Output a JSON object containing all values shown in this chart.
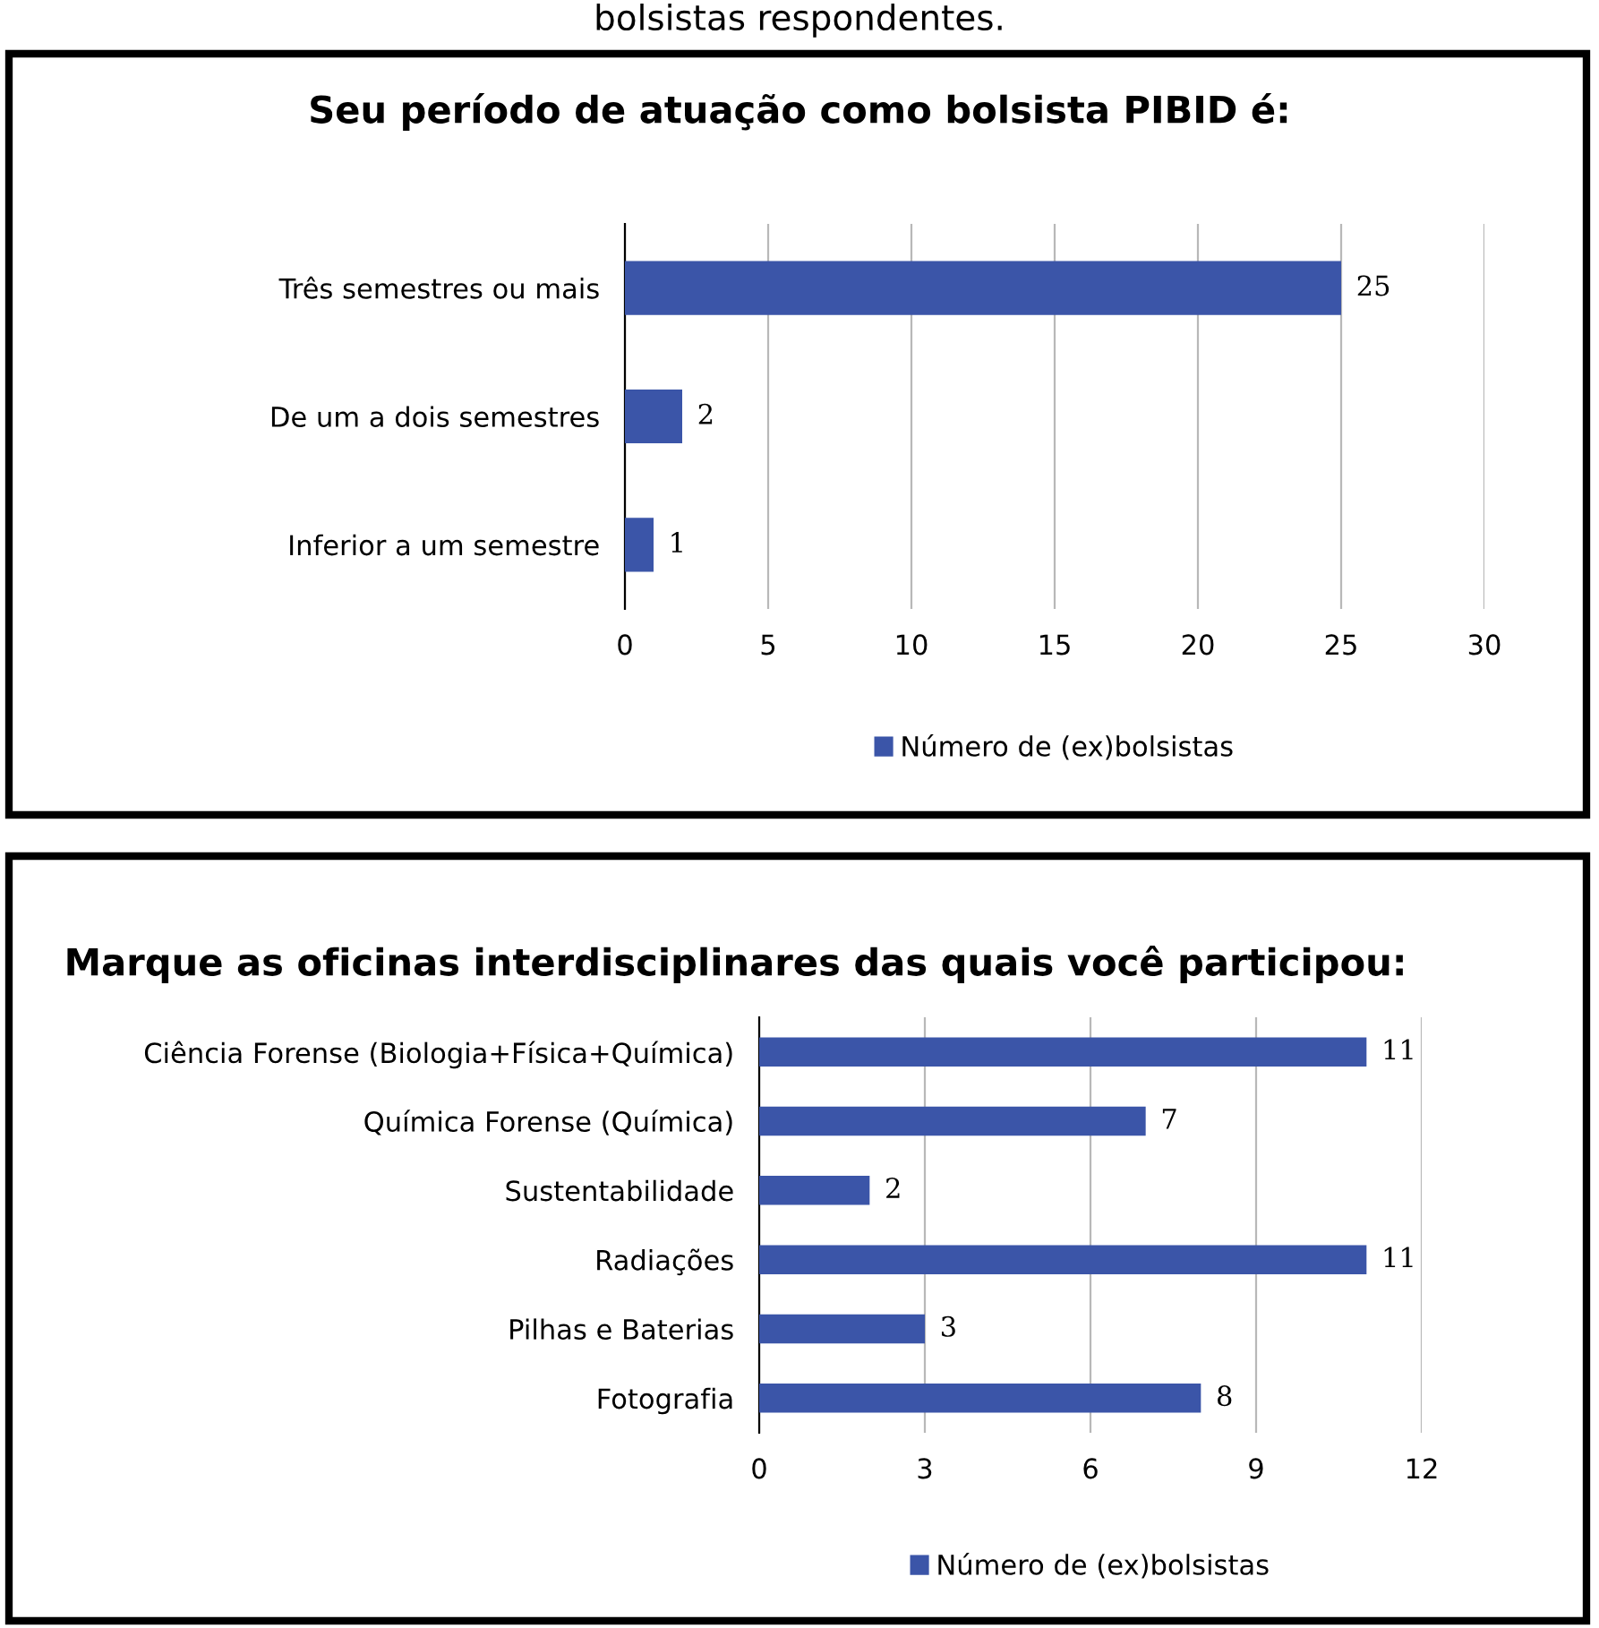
{
  "chart_data": [
    {
      "type": "bar",
      "orientation": "horizontal",
      "title": "Seu período de atuação como bolsista PIBID é:",
      "annotations": [
        "bolsistas respondentes."
      ],
      "categories": [
        "Três semestres ou mais",
        "De um a dois semestres",
        "Inferior a um semestre"
      ],
      "series": [
        {
          "name": "Número de (ex)bolsistas",
          "color": "#3b55a8",
          "values": [
            25,
            2,
            1
          ]
        }
      ],
      "xlim": [
        0,
        30
      ],
      "xticks": [
        0,
        5,
        10,
        15,
        20,
        25,
        30
      ],
      "grid": "x",
      "legend": "bottom",
      "data_labels": true
    },
    {
      "type": "bar",
      "orientation": "horizontal",
      "title": "Marque as oficinas interdisciplinares das quais você participou:",
      "categories": [
        "Ciência Forense (Biologia+Física+Química)",
        "Química Forense (Química)",
        "Sustentabilidade",
        "Radiações",
        "Pilhas e Baterias",
        "Fotografia"
      ],
      "series": [
        {
          "name": "Número de (ex)bolsistas",
          "color": "#3b55a8",
          "values": [
            11,
            7,
            2,
            11,
            3,
            8
          ]
        }
      ],
      "xlim": [
        0,
        12
      ],
      "xticks": [
        0,
        3,
        6,
        9,
        12
      ],
      "grid": "x",
      "legend": "bottom",
      "data_labels": true
    }
  ]
}
